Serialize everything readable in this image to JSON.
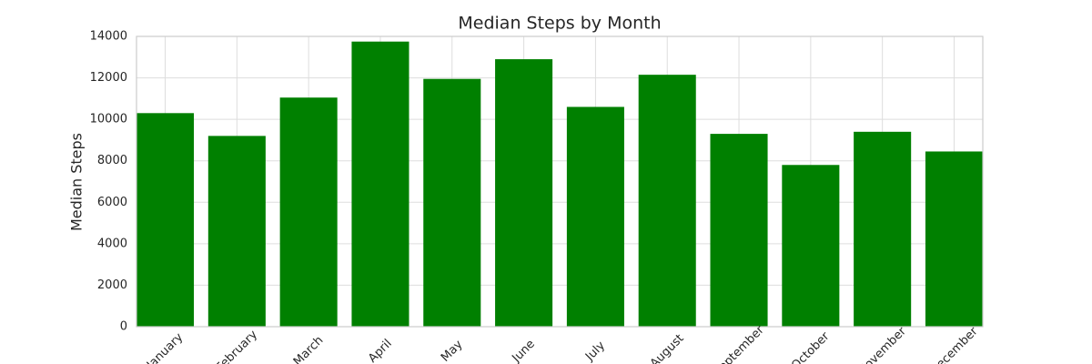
{
  "chart_data": {
    "type": "bar",
    "title": "Median Steps by Month",
    "y_label": "Median Steps",
    "categories": [
      "January",
      "February",
      "March",
      "April",
      "May",
      "June",
      "July",
      "August",
      "September",
      "October",
      "November",
      "December"
    ],
    "values": [
      10300,
      9200,
      11050,
      13750,
      11950,
      12900,
      10600,
      12150,
      9300,
      7800,
      9400,
      8450
    ],
    "color": "#008000",
    "ylim": [
      0,
      14000
    ],
    "yticks": [
      0,
      2000,
      4000,
      6000,
      8000,
      10000,
      12000,
      14000
    ],
    "grid": true
  }
}
